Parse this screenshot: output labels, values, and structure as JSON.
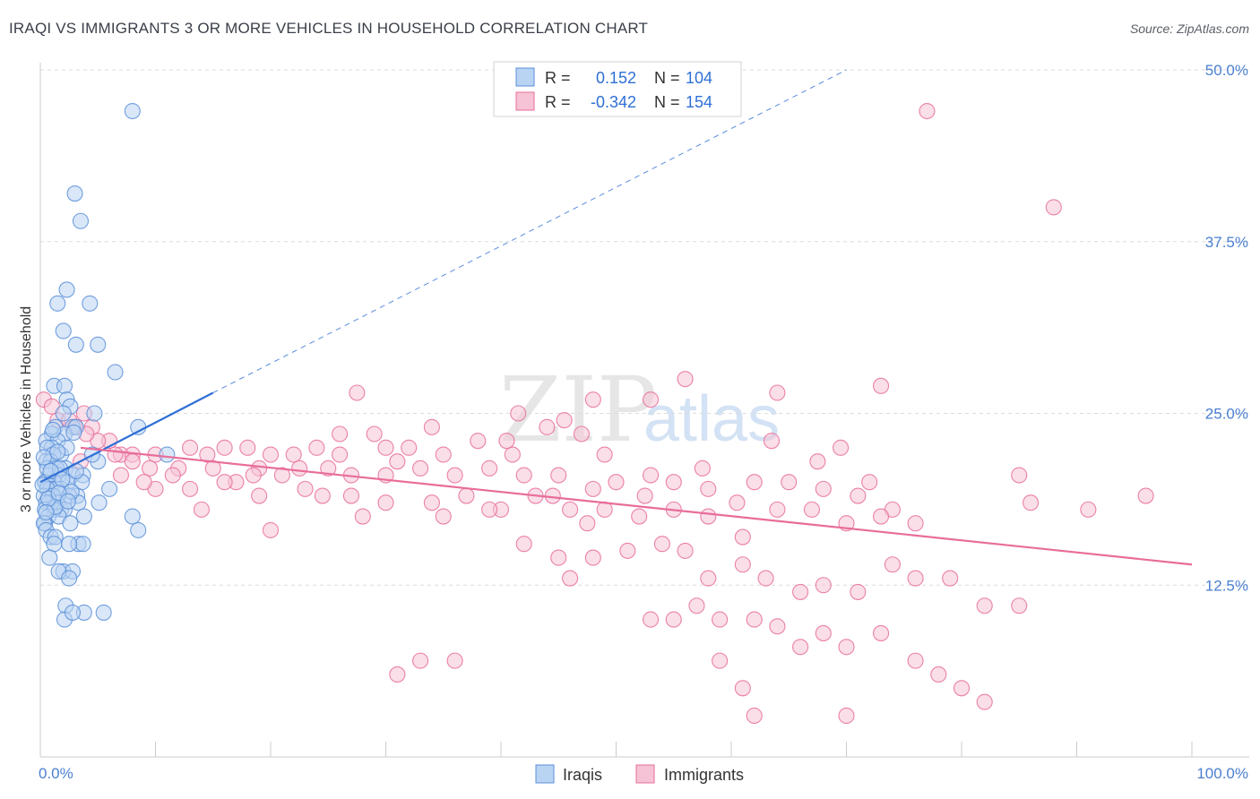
{
  "title": "IRAQI VS IMMIGRANTS 3 OR MORE VEHICLES IN HOUSEHOLD CORRELATION CHART",
  "source": "Source: ZipAtlas.com",
  "watermark": {
    "zip": "ZIP",
    "atlas": "atlas"
  },
  "colors": {
    "iraqis": "#5b8fd8",
    "iraqis_fill": "#b9d3f3",
    "immigrants": "#e86d9a",
    "immigrants_fill": "#f6c2d5",
    "trend_iraqis": "#2f6fd6",
    "trend_immigrants": "#e86d9a",
    "grid": "#dcdcdc",
    "tick_text": "#4a7fd1"
  },
  "legend": {
    "r_label": "R =",
    "n_label": "N =",
    "rows": [
      {
        "series": "Iraqis",
        "r": "0.152",
        "n": "104"
      },
      {
        "series": "Immigrants",
        "r": "-0.342",
        "n": "154"
      }
    ]
  },
  "chart_data": {
    "type": "scatter",
    "title": "IRAQI VS IMMIGRANTS 3 OR MORE VEHICLES IN HOUSEHOLD CORRELATION CHART",
    "xlabel": "",
    "ylabel": "3 or more Vehicles in Household",
    "xlim": [
      0,
      100
    ],
    "ylim": [
      0,
      50
    ],
    "x_tick_labels": [
      "0.0%",
      "100.0%"
    ],
    "y_ticks": [
      12.5,
      25.0,
      37.5,
      50.0
    ],
    "y_tick_labels": [
      "12.5%",
      "25.0%",
      "37.5%",
      "50.0%"
    ],
    "grid": true,
    "legend_position": "top-center",
    "series": [
      {
        "name": "Iraqis",
        "points": [
          [
            8,
            47
          ],
          [
            3,
            41
          ],
          [
            3.5,
            39
          ],
          [
            2.3,
            34
          ],
          [
            4.3,
            33
          ],
          [
            1.5,
            33
          ],
          [
            2,
            31
          ],
          [
            3.1,
            30
          ],
          [
            5,
            30
          ],
          [
            6.5,
            28
          ],
          [
            1.2,
            27
          ],
          [
            2.1,
            27
          ],
          [
            2.3,
            26
          ],
          [
            2.6,
            25.5
          ],
          [
            2,
            25
          ],
          [
            4.7,
            25
          ],
          [
            1.3,
            24
          ],
          [
            2.8,
            24
          ],
          [
            3.1,
            24
          ],
          [
            8.5,
            24
          ],
          [
            1,
            23.5
          ],
          [
            2.1,
            23.5
          ],
          [
            0.5,
            23
          ],
          [
            1.5,
            23
          ],
          [
            1,
            22.5
          ],
          [
            0.6,
            22.5
          ],
          [
            1.8,
            22
          ],
          [
            11,
            22
          ],
          [
            1.1,
            22
          ],
          [
            0.5,
            21.5
          ],
          [
            0.9,
            21.5
          ],
          [
            2.2,
            21
          ],
          [
            5,
            21.5
          ],
          [
            1.4,
            21
          ],
          [
            2.8,
            20.5
          ],
          [
            3.7,
            20.5
          ],
          [
            1.6,
            20.5
          ],
          [
            0.8,
            20.5
          ],
          [
            0.5,
            20
          ],
          [
            0.4,
            20
          ],
          [
            1.2,
            20
          ],
          [
            2.4,
            20
          ],
          [
            3.6,
            20
          ],
          [
            1.8,
            19.5
          ],
          [
            0.9,
            19.5
          ],
          [
            1.4,
            19.5
          ],
          [
            0.6,
            19.5
          ],
          [
            3.2,
            19
          ],
          [
            6,
            19.5
          ],
          [
            0.3,
            19
          ],
          [
            1.1,
            19
          ],
          [
            2.5,
            19
          ],
          [
            0.8,
            18.5
          ],
          [
            1.5,
            18.5
          ],
          [
            3.3,
            18.5
          ],
          [
            5.1,
            18.5
          ],
          [
            0.5,
            18.5
          ],
          [
            1.8,
            18
          ],
          [
            2.1,
            18
          ],
          [
            0.4,
            18
          ],
          [
            1.2,
            18
          ],
          [
            0.7,
            17.5
          ],
          [
            1.6,
            17.5
          ],
          [
            3.8,
            17.5
          ],
          [
            8,
            17.5
          ],
          [
            0.4,
            17
          ],
          [
            2.6,
            17
          ],
          [
            0.3,
            17
          ],
          [
            0.5,
            16.5
          ],
          [
            8.5,
            16.5
          ],
          [
            0.9,
            16
          ],
          [
            1.3,
            16
          ],
          [
            3.3,
            15.5
          ],
          [
            3.7,
            15.5
          ],
          [
            2.5,
            15.5
          ],
          [
            1.2,
            15.5
          ],
          [
            0.8,
            14.5
          ],
          [
            2,
            13.5
          ],
          [
            2.8,
            13.5
          ],
          [
            1.6,
            13.5
          ],
          [
            2.5,
            13
          ],
          [
            2.2,
            11
          ],
          [
            3.8,
            10.5
          ],
          [
            5.5,
            10.5
          ],
          [
            2.1,
            10
          ],
          [
            2.8,
            10.5
          ],
          [
            0.6,
            21
          ],
          [
            1.7,
            21
          ],
          [
            0.9,
            20.8
          ],
          [
            2.7,
            19.3
          ],
          [
            1.3,
            18.2
          ],
          [
            0.7,
            18.8
          ],
          [
            1.9,
            20.2
          ],
          [
            2.3,
            22.5
          ],
          [
            1.5,
            22.2
          ],
          [
            0.3,
            21.8
          ],
          [
            2.9,
            23.6
          ],
          [
            1.1,
            23.8
          ],
          [
            4.5,
            22
          ],
          [
            0.2,
            19.8
          ],
          [
            1.6,
            19.2
          ],
          [
            2.4,
            18.6
          ],
          [
            3.1,
            20.8
          ],
          [
            0.5,
            17.8
          ]
        ],
        "trend": {
          "x": [
            0,
            15
          ],
          "y": [
            20,
            26.5
          ],
          "extended_to": [
            70,
            50
          ]
        }
      },
      {
        "name": "Immigrants",
        "points": [
          [
            77,
            47
          ],
          [
            88,
            40
          ],
          [
            0.3,
            26
          ],
          [
            27.5,
            26.5
          ],
          [
            48,
            26
          ],
          [
            53,
            26
          ],
          [
            56,
            27.5
          ],
          [
            73,
            27
          ],
          [
            64,
            26.5
          ],
          [
            1.5,
            24.5
          ],
          [
            2.5,
            24.5
          ],
          [
            3,
            24
          ],
          [
            4.5,
            24
          ],
          [
            6,
            23
          ],
          [
            7,
            22
          ],
          [
            8,
            22
          ],
          [
            13,
            22.5
          ],
          [
            16,
            22.5
          ],
          [
            18,
            22.5
          ],
          [
            20,
            22
          ],
          [
            22,
            22
          ],
          [
            24,
            22.5
          ],
          [
            26,
            22
          ],
          [
            29,
            23.5
          ],
          [
            30,
            22.5
          ],
          [
            32,
            22.5
          ],
          [
            35,
            22
          ],
          [
            38,
            23
          ],
          [
            41,
            22
          ],
          [
            44,
            24
          ],
          [
            47,
            23.5
          ],
          [
            49,
            22
          ],
          [
            3.5,
            21.5
          ],
          [
            8,
            21.5
          ],
          [
            12,
            21
          ],
          [
            15,
            21
          ],
          [
            17,
            20
          ],
          [
            19,
            21
          ],
          [
            22.5,
            21
          ],
          [
            25,
            21
          ],
          [
            27,
            20.5
          ],
          [
            30,
            20.5
          ],
          [
            33,
            21
          ],
          [
            36,
            20.5
          ],
          [
            39,
            21
          ],
          [
            42,
            20.5
          ],
          [
            45,
            20.5
          ],
          [
            48,
            19.5
          ],
          [
            50,
            20
          ],
          [
            53,
            20.5
          ],
          [
            55,
            20
          ],
          [
            58,
            19.5
          ],
          [
            62,
            20
          ],
          [
            65,
            20
          ],
          [
            68,
            19.5
          ],
          [
            71,
            19
          ],
          [
            74,
            18
          ],
          [
            76,
            17
          ],
          [
            7,
            20.5
          ],
          [
            10,
            19.5
          ],
          [
            13,
            19.5
          ],
          [
            16,
            20
          ],
          [
            19,
            19
          ],
          [
            23,
            19.5
          ],
          [
            27,
            19
          ],
          [
            30,
            18.5
          ],
          [
            34,
            18.5
          ],
          [
            37,
            19
          ],
          [
            40,
            18
          ],
          [
            43,
            19
          ],
          [
            46,
            18
          ],
          [
            49,
            18
          ],
          [
            52,
            17.5
          ],
          [
            55,
            18
          ],
          [
            58,
            17.5
          ],
          [
            61,
            16
          ],
          [
            64,
            18
          ],
          [
            67,
            18
          ],
          [
            70,
            17
          ],
          [
            73,
            17.5
          ],
          [
            14,
            18
          ],
          [
            20,
            16.5
          ],
          [
            28,
            17.5
          ],
          [
            35,
            17.5
          ],
          [
            39,
            18
          ],
          [
            42,
            15.5
          ],
          [
            45,
            14.5
          ],
          [
            48,
            14.5
          ],
          [
            51,
            15
          ],
          [
            54,
            15.5
          ],
          [
            56,
            15
          ],
          [
            58,
            13
          ],
          [
            61,
            14
          ],
          [
            63,
            13
          ],
          [
            66,
            12
          ],
          [
            68,
            12.5
          ],
          [
            71,
            12
          ],
          [
            74,
            14
          ],
          [
            76,
            13
          ],
          [
            79,
            13
          ],
          [
            82,
            11
          ],
          [
            85,
            11
          ],
          [
            55,
            10
          ],
          [
            57,
            11
          ],
          [
            59,
            10
          ],
          [
            62,
            10
          ],
          [
            64,
            9.5
          ],
          [
            66,
            8
          ],
          [
            68,
            9
          ],
          [
            70,
            8
          ],
          [
            73,
            9
          ],
          [
            76,
            7
          ],
          [
            78,
            6
          ],
          [
            80,
            5
          ],
          [
            82,
            4
          ],
          [
            53,
            10
          ],
          [
            46,
            13
          ],
          [
            36,
            7
          ],
          [
            33,
            7
          ],
          [
            59,
            7
          ],
          [
            61,
            5
          ],
          [
            62,
            3
          ],
          [
            70,
            3
          ],
          [
            31,
            6
          ],
          [
            85,
            20.5
          ],
          [
            86,
            18.5
          ],
          [
            91,
            18
          ],
          [
            96,
            19
          ],
          [
            10,
            22
          ],
          [
            5,
            23
          ],
          [
            9.5,
            21
          ],
          [
            11.5,
            20.5
          ],
          [
            6.5,
            22
          ],
          [
            3.8,
            25
          ],
          [
            14.5,
            22
          ],
          [
            21,
            20.5
          ],
          [
            24.5,
            19
          ],
          [
            31,
            21.5
          ],
          [
            34,
            24
          ],
          [
            40.5,
            23
          ],
          [
            45.5,
            24.5
          ],
          [
            52.5,
            19
          ],
          [
            57.5,
            21
          ],
          [
            60.5,
            18.5
          ],
          [
            63.5,
            23
          ],
          [
            67.5,
            21.5
          ],
          [
            1,
            25.5
          ],
          [
            4,
            23.5
          ],
          [
            9,
            20
          ],
          [
            18.5,
            20.5
          ],
          [
            26,
            23.5
          ],
          [
            41.5,
            25
          ],
          [
            44.5,
            19
          ],
          [
            47.5,
            17
          ],
          [
            69.5,
            22.5
          ],
          [
            72,
            20
          ]
        ],
        "trend": {
          "x": [
            3.5,
            100
          ],
          "y": [
            22.5,
            14
          ]
        }
      }
    ]
  },
  "axes": {
    "ylabel": "3 or more Vehicles in Household",
    "x_left": "0.0%",
    "x_right": "100.0%",
    "y_ticks": [
      "12.5%",
      "25.0%",
      "37.5%",
      "50.0%"
    ]
  },
  "bottom_legend": [
    {
      "name": "Iraqis"
    },
    {
      "name": "Immigrants"
    }
  ]
}
